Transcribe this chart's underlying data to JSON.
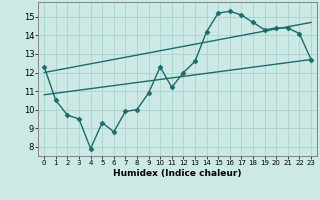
{
  "xlabel": "Humidex (Indice chaleur)",
  "xlim": [
    -0.5,
    23.5
  ],
  "ylim": [
    7.5,
    15.8
  ],
  "xticks": [
    0,
    1,
    2,
    3,
    4,
    5,
    6,
    7,
    8,
    9,
    10,
    11,
    12,
    13,
    14,
    15,
    16,
    17,
    18,
    19,
    20,
    21,
    22,
    23
  ],
  "yticks": [
    8,
    9,
    10,
    11,
    12,
    13,
    14,
    15
  ],
  "bg_color": "#cce9e5",
  "line_color": "#1a6b6b",
  "grid_color": "#aad4cf",
  "main_x": [
    0,
    1,
    2,
    3,
    4,
    5,
    6,
    7,
    8,
    9,
    10,
    11,
    12,
    13,
    14,
    15,
    16,
    17,
    18,
    19,
    20,
    21,
    22,
    23
  ],
  "main_y": [
    12.3,
    10.5,
    9.7,
    9.5,
    7.9,
    9.3,
    8.8,
    9.9,
    10.0,
    10.9,
    12.3,
    11.2,
    12.0,
    12.6,
    14.2,
    15.2,
    15.3,
    15.1,
    14.7,
    14.3,
    14.4,
    14.4,
    14.1,
    12.7
  ],
  "line2_x": [
    0,
    23
  ],
  "line2_y": [
    10.8,
    12.7
  ],
  "line3_x": [
    0,
    23
  ],
  "line3_y": [
    12.0,
    14.7
  ],
  "marker": "D",
  "markersize": 2.5,
  "linewidth": 1.0
}
